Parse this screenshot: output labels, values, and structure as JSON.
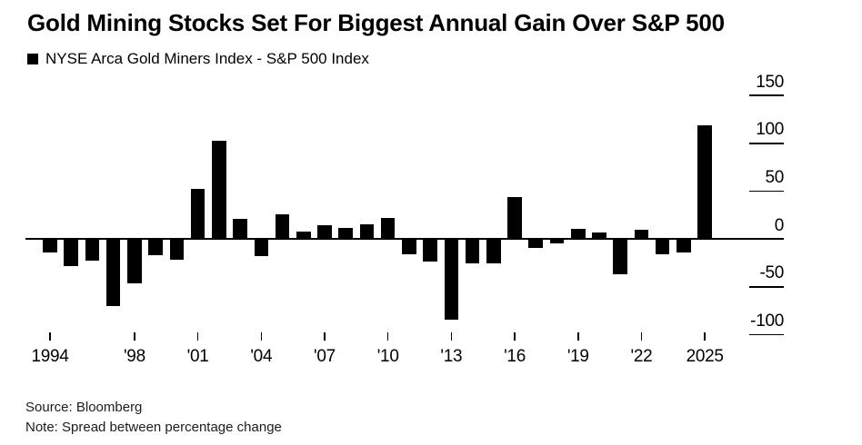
{
  "title": "Gold Mining Stocks Set For Biggest Annual Gain Over S&P 500",
  "legend": {
    "marker": "black-square",
    "label": "NYSE Arca Gold Miners Index - S&P 500 Index"
  },
  "footer": {
    "source": "Source: Bloomberg",
    "note": "Note: Spread between percentage change"
  },
  "colors": {
    "bar": "#000000",
    "axis": "#000000",
    "text": "#000000",
    "background": "#ffffff"
  },
  "chart_data": {
    "type": "bar",
    "title": "Gold Mining Stocks Set For Biggest Annual Gain Over S&P 500",
    "series_name": "NYSE Arca Gold Miners Index - S&P 500 Index",
    "note": "Spread between percentage change",
    "x": [
      1994,
      1995,
      1996,
      1997,
      1998,
      1999,
      2000,
      2001,
      2002,
      2003,
      2004,
      2005,
      2006,
      2007,
      2008,
      2009,
      2010,
      2011,
      2012,
      2013,
      2014,
      2015,
      2016,
      2017,
      2018,
      2019,
      2020,
      2021,
      2022,
      2023,
      2024,
      2025
    ],
    "values": [
      -14,
      -28,
      -23,
      -70,
      -46,
      -17,
      -22,
      52,
      103,
      21,
      -18,
      26,
      8,
      14,
      12,
      15,
      22,
      -16,
      -24,
      -84,
      -25,
      -25,
      44,
      -9,
      -5,
      11,
      7,
      -37,
      10,
      -16,
      -14,
      119
    ],
    "y_ticks": [
      150,
      100,
      50,
      0,
      -50,
      -100
    ],
    "ylim": [
      -110,
      155
    ],
    "x_ticks": [
      {
        "year": 1994,
        "label": "1994"
      },
      {
        "year": 1998,
        "label": "'98"
      },
      {
        "year": 2001,
        "label": "'01"
      },
      {
        "year": 2004,
        "label": "'04"
      },
      {
        "year": 2007,
        "label": "'07"
      },
      {
        "year": 2010,
        "label": "'10"
      },
      {
        "year": 2013,
        "label": "'13"
      },
      {
        "year": 2016,
        "label": "'16"
      },
      {
        "year": 2019,
        "label": "'19"
      },
      {
        "year": 2022,
        "label": "'22"
      },
      {
        "year": 2025,
        "label": "2025"
      }
    ],
    "grid": false,
    "legend_position": "top-left",
    "y_axis_side": "right"
  }
}
